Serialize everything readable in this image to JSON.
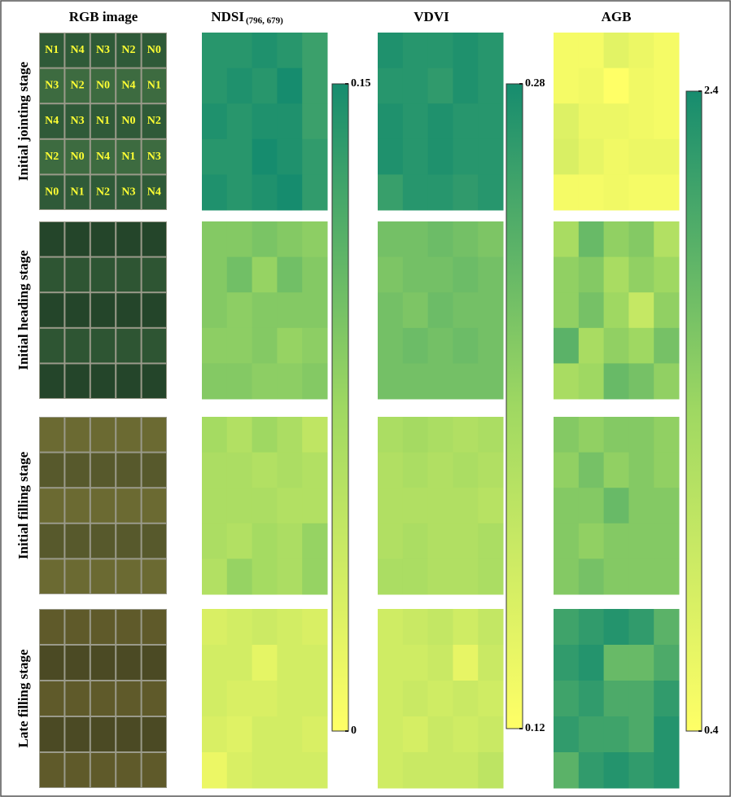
{
  "figure": {
    "column_title": "RGB image",
    "stages": [
      "Initial jointing stage",
      "Initial heading stage",
      "Initial filling stage",
      "Late filling stage"
    ],
    "plot_labels": [
      [
        "N1",
        "N4",
        "N3",
        "N2",
        "N0"
      ],
      [
        "N3",
        "N2",
        "N0",
        "N4",
        "N1"
      ],
      [
        "N4",
        "N3",
        "N1",
        "N0",
        "N2"
      ],
      [
        "N2",
        "N0",
        "N4",
        "N1",
        "N3"
      ],
      [
        "N0",
        "N1",
        "N2",
        "N3",
        "N4"
      ]
    ]
  },
  "chart_data": [
    {
      "type": "heatmap",
      "title": "NDSI",
      "subtitle": "(796, 679)",
      "colormap": [
        "#ffff66",
        "#9fd862",
        "#168c6e"
      ],
      "zlim": [
        0,
        0.15
      ],
      "zticks": [
        0,
        0.15
      ],
      "values": [
        [
          [
            0.14,
            0.14,
            0.145,
            0.14,
            0.13
          ],
          [
            0.14,
            0.145,
            0.14,
            0.15,
            0.13
          ],
          [
            0.145,
            0.14,
            0.145,
            0.145,
            0.13
          ],
          [
            0.14,
            0.14,
            0.15,
            0.145,
            0.135
          ],
          [
            0.145,
            0.14,
            0.145,
            0.15,
            0.135
          ]
        ],
        [
          [
            0.09,
            0.09,
            0.095,
            0.09,
            0.085
          ],
          [
            0.09,
            0.1,
            0.08,
            0.1,
            0.09
          ],
          [
            0.09,
            0.085,
            0.09,
            0.09,
            0.09
          ],
          [
            0.085,
            0.085,
            0.09,
            0.08,
            0.085
          ],
          [
            0.09,
            0.09,
            0.085,
            0.085,
            0.09
          ]
        ],
        [
          [
            0.07,
            0.06,
            0.075,
            0.065,
            0.05
          ],
          [
            0.065,
            0.065,
            0.06,
            0.065,
            0.06
          ],
          [
            0.065,
            0.065,
            0.065,
            0.06,
            0.06
          ],
          [
            0.065,
            0.06,
            0.07,
            0.065,
            0.08
          ],
          [
            0.06,
            0.08,
            0.07,
            0.065,
            0.08
          ]
        ],
        [
          [
            0.03,
            0.035,
            0.04,
            0.035,
            0.03
          ],
          [
            0.035,
            0.035,
            0.02,
            0.035,
            0.035
          ],
          [
            0.035,
            0.03,
            0.03,
            0.035,
            0.035
          ],
          [
            0.03,
            0.025,
            0.035,
            0.035,
            0.03
          ],
          [
            0.015,
            0.03,
            0.035,
            0.035,
            0.035
          ]
        ]
      ]
    },
    {
      "type": "heatmap",
      "title": "VDVI",
      "colormap": [
        "#ffff66",
        "#9fd862",
        "#168c6e"
      ],
      "zlim": [
        0.12,
        0.28
      ],
      "zticks": [
        0.12,
        0.28
      ],
      "values": [
        [
          [
            0.275,
            0.27,
            0.27,
            0.275,
            0.27
          ],
          [
            0.27,
            0.27,
            0.265,
            0.275,
            0.27
          ],
          [
            0.275,
            0.27,
            0.275,
            0.27,
            0.27
          ],
          [
            0.275,
            0.27,
            0.275,
            0.27,
            0.27
          ],
          [
            0.26,
            0.27,
            0.27,
            0.265,
            0.27
          ]
        ],
        [
          [
            0.225,
            0.225,
            0.23,
            0.225,
            0.22
          ],
          [
            0.22,
            0.225,
            0.225,
            0.23,
            0.225
          ],
          [
            0.225,
            0.22,
            0.23,
            0.225,
            0.225
          ],
          [
            0.225,
            0.23,
            0.225,
            0.23,
            0.225
          ],
          [
            0.225,
            0.225,
            0.225,
            0.225,
            0.225
          ]
        ],
        [
          [
            0.19,
            0.195,
            0.19,
            0.185,
            0.19
          ],
          [
            0.185,
            0.19,
            0.185,
            0.19,
            0.185
          ],
          [
            0.185,
            0.185,
            0.185,
            0.185,
            0.18
          ],
          [
            0.185,
            0.19,
            0.185,
            0.185,
            0.19
          ],
          [
            0.19,
            0.19,
            0.185,
            0.185,
            0.19
          ]
        ],
        [
          [
            0.16,
            0.165,
            0.17,
            0.16,
            0.17
          ],
          [
            0.16,
            0.16,
            0.165,
            0.14,
            0.165
          ],
          [
            0.16,
            0.165,
            0.16,
            0.165,
            0.16
          ],
          [
            0.16,
            0.155,
            0.165,
            0.16,
            0.165
          ],
          [
            0.16,
            0.165,
            0.165,
            0.165,
            0.175
          ]
        ]
      ]
    },
    {
      "type": "heatmap",
      "title": "AGB",
      "colormap": [
        "#ffff66",
        "#9fd862",
        "#168c6e"
      ],
      "zlim": [
        0.4,
        2.4
      ],
      "zticks": [
        0.4,
        2.4
      ],
      "values": [
        [
          [
            0.5,
            0.5,
            0.7,
            0.6,
            0.5
          ],
          [
            0.5,
            0.55,
            0.4,
            0.55,
            0.5
          ],
          [
            0.75,
            0.6,
            0.6,
            0.55,
            0.5
          ],
          [
            0.8,
            0.65,
            0.55,
            0.6,
            0.6
          ],
          [
            0.5,
            0.5,
            0.55,
            0.5,
            0.5
          ]
        ],
        [
          [
            1.3,
            1.8,
            1.5,
            1.6,
            1.2
          ],
          [
            1.5,
            1.6,
            1.3,
            1.5,
            1.4
          ],
          [
            1.5,
            1.7,
            1.4,
            1.0,
            1.5
          ],
          [
            1.9,
            1.3,
            1.5,
            1.4,
            1.7
          ],
          [
            1.3,
            1.4,
            1.8,
            1.7,
            1.5
          ]
        ],
        [
          [
            1.6,
            1.5,
            1.6,
            1.6,
            1.5
          ],
          [
            1.5,
            1.7,
            1.5,
            1.6,
            1.5
          ],
          [
            1.6,
            1.6,
            1.8,
            1.6,
            1.6
          ],
          [
            1.6,
            1.5,
            1.6,
            1.6,
            1.6
          ],
          [
            1.6,
            1.7,
            1.6,
            1.6,
            1.6
          ]
        ],
        [
          [
            2.1,
            2.2,
            2.3,
            2.2,
            1.9
          ],
          [
            2.2,
            2.3,
            1.8,
            1.8,
            2.0
          ],
          [
            2.1,
            2.2,
            2.0,
            2.0,
            2.2
          ],
          [
            2.2,
            2.1,
            2.1,
            2.0,
            2.3
          ],
          [
            1.9,
            2.2,
            2.3,
            2.2,
            2.3
          ]
        ]
      ]
    }
  ]
}
